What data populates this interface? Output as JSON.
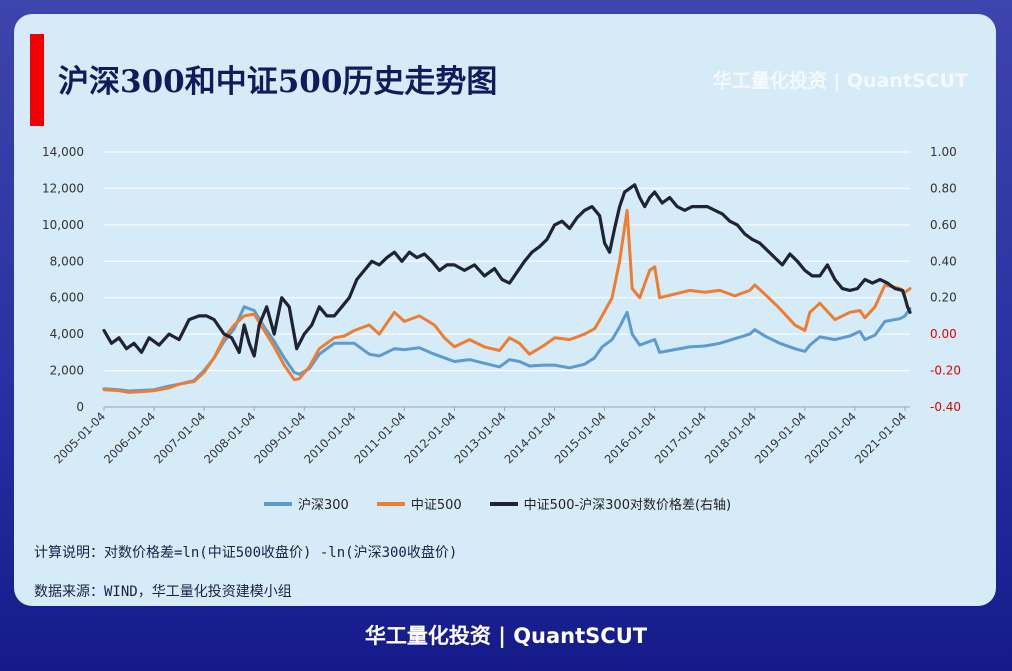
{
  "header": {
    "title": "沪深300和中证500历史走势图",
    "watermark": "华工量化投资 | QuantSCUT"
  },
  "colors": {
    "hs300": "#5b9bd5",
    "zz500": "#ed7d31",
    "spread": "#1f2333",
    "negative_tick": "#e00000",
    "title_bar": "#f00000"
  },
  "chart_data": {
    "type": "line",
    "title": "",
    "xlabel": "",
    "ylabel": "",
    "ylim": [
      0,
      14000
    ],
    "y2lim": [
      -0.4,
      1.0
    ],
    "y_ticks": [
      "0",
      "2,000",
      "4,000",
      "6,000",
      "8,000",
      "10,000",
      "12,000",
      "14,000"
    ],
    "y2_ticks": [
      "-0.40",
      "-0.20",
      "0.00",
      "0.20",
      "0.40",
      "0.60",
      "0.80",
      "1.00"
    ],
    "x_ticks": [
      "2005-01-04",
      "2006-01-04",
      "2007-01-04",
      "2008-01-04",
      "2009-01-04",
      "2010-01-04",
      "2011-01-04",
      "2012-01-04",
      "2013-01-04",
      "2014-01-04",
      "2015-01-04",
      "2016-01-04",
      "2017-01-04",
      "2018-01-04",
      "2019-01-04",
      "2020-01-04",
      "2021-01-04"
    ],
    "x_start_year": 2005,
    "x_end_year": 2021.1,
    "grid": true,
    "legend_position": "bottom",
    "series": [
      {
        "name": "沪深300",
        "axis": "left",
        "x": [
          2005.0,
          2005.3,
          2005.5,
          2005.8,
          2006.0,
          2006.3,
          2006.5,
          2006.8,
          2007.0,
          2007.2,
          2007.4,
          2007.6,
          2007.8,
          2008.0,
          2008.2,
          2008.4,
          2008.6,
          2008.8,
          2008.9,
          2009.1,
          2009.3,
          2009.6,
          2009.8,
          2010.0,
          2010.3,
          2010.5,
          2010.8,
          2011.0,
          2011.3,
          2011.6,
          2011.8,
          2012.0,
          2012.3,
          2012.6,
          2012.9,
          2013.1,
          2013.3,
          2013.5,
          2013.8,
          2014.0,
          2014.3,
          2014.6,
          2014.8,
          2014.95,
          2015.15,
          2015.3,
          2015.45,
          2015.55,
          2015.7,
          2015.9,
          2016.0,
          2016.1,
          2016.4,
          2016.7,
          2017.0,
          2017.3,
          2017.6,
          2017.9,
          2018.0,
          2018.2,
          2018.5,
          2018.8,
          2019.0,
          2019.1,
          2019.3,
          2019.6,
          2019.9,
          2020.1,
          2020.2,
          2020.4,
          2020.6,
          2020.9,
          2021.0,
          2021.1
        ],
        "values": [
          1000,
          950,
          880,
          920,
          950,
          1150,
          1250,
          1450,
          2000,
          2700,
          3600,
          4300,
          5500,
          5300,
          4400,
          3600,
          2700,
          1900,
          1800,
          2100,
          2900,
          3500,
          3500,
          3500,
          2900,
          2800,
          3200,
          3150,
          3250,
          2900,
          2700,
          2500,
          2600,
          2400,
          2200,
          2600,
          2500,
          2250,
          2300,
          2300,
          2150,
          2350,
          2700,
          3300,
          3700,
          4400,
          5200,
          4000,
          3400,
          3600,
          3700,
          3000,
          3150,
          3300,
          3350,
          3500,
          3750,
          4000,
          4250,
          3900,
          3500,
          3200,
          3050,
          3400,
          3850,
          3700,
          3900,
          4150,
          3700,
          3950,
          4700,
          4850,
          5000,
          5400
        ]
      },
      {
        "name": "中证500",
        "axis": "left",
        "x": [
          2005.0,
          2005.3,
          2005.5,
          2005.8,
          2006.0,
          2006.3,
          2006.5,
          2006.8,
          2007.0,
          2007.2,
          2007.4,
          2007.6,
          2007.8,
          2008.0,
          2008.2,
          2008.4,
          2008.6,
          2008.8,
          2008.9,
          2009.1,
          2009.3,
          2009.6,
          2009.8,
          2010.0,
          2010.3,
          2010.5,
          2010.8,
          2011.0,
          2011.3,
          2011.6,
          2011.8,
          2012.0,
          2012.3,
          2012.6,
          2012.9,
          2013.1,
          2013.3,
          2013.5,
          2013.8,
          2014.0,
          2014.3,
          2014.6,
          2014.8,
          2014.95,
          2015.15,
          2015.3,
          2015.45,
          2015.55,
          2015.7,
          2015.9,
          2016.0,
          2016.1,
          2016.4,
          2016.7,
          2017.0,
          2017.3,
          2017.6,
          2017.9,
          2018.0,
          2018.2,
          2018.5,
          2018.8,
          2019.0,
          2019.1,
          2019.3,
          2019.6,
          2019.9,
          2020.1,
          2020.2,
          2020.4,
          2020.6,
          2020.9,
          2021.0,
          2021.1
        ],
        "values": [
          950,
          900,
          800,
          850,
          900,
          1050,
          1250,
          1400,
          1900,
          2700,
          3800,
          4500,
          5000,
          5100,
          4200,
          3300,
          2300,
          1500,
          1550,
          2200,
          3200,
          3800,
          3900,
          4200,
          4500,
          4000,
          5200,
          4700,
          5000,
          4500,
          3800,
          3300,
          3700,
          3300,
          3100,
          3800,
          3500,
          2900,
          3400,
          3800,
          3700,
          4000,
          4300,
          5000,
          6000,
          8000,
          10800,
          6500,
          6000,
          7500,
          7700,
          6000,
          6200,
          6400,
          6300,
          6400,
          6100,
          6400,
          6700,
          6200,
          5400,
          4500,
          4200,
          5200,
          5700,
          4800,
          5200,
          5300,
          4900,
          5500,
          6700,
          6500,
          6300,
          6500
        ]
      },
      {
        "name": "中证500-沪深300对数价格差(右轴)",
        "axis": "right",
        "x": [
          2005.0,
          2005.15,
          2005.3,
          2005.45,
          2005.6,
          2005.75,
          2005.9,
          2006.1,
          2006.3,
          2006.5,
          2006.7,
          2006.9,
          2007.05,
          2007.2,
          2007.4,
          2007.55,
          2007.7,
          2007.8,
          2007.9,
          2008.0,
          2008.1,
          2008.25,
          2008.4,
          2008.55,
          2008.7,
          2008.85,
          2009.0,
          2009.15,
          2009.3,
          2009.45,
          2009.6,
          2009.75,
          2009.9,
          2010.05,
          2010.2,
          2010.35,
          2010.5,
          2010.65,
          2010.8,
          2010.95,
          2011.1,
          2011.25,
          2011.4,
          2011.55,
          2011.7,
          2011.85,
          2012.0,
          2012.2,
          2012.4,
          2012.6,
          2012.8,
          2012.95,
          2013.1,
          2013.25,
          2013.4,
          2013.55,
          2013.7,
          2013.85,
          2014.0,
          2014.15,
          2014.3,
          2014.45,
          2014.6,
          2014.75,
          2014.9,
          2015.0,
          2015.1,
          2015.2,
          2015.3,
          2015.4,
          2015.5,
          2015.6,
          2015.7,
          2015.8,
          2015.9,
          2016.0,
          2016.15,
          2016.3,
          2016.45,
          2016.6,
          2016.75,
          2016.9,
          2017.05,
          2017.2,
          2017.35,
          2017.5,
          2017.65,
          2017.8,
          2017.95,
          2018.1,
          2018.25,
          2018.4,
          2018.55,
          2018.7,
          2018.85,
          2019.0,
          2019.15,
          2019.3,
          2019.45,
          2019.6,
          2019.75,
          2019.9,
          2020.05,
          2020.2,
          2020.35,
          2020.5,
          2020.65,
          2020.8,
          2020.95,
          2021.0,
          2021.05,
          2021.1
        ],
        "values": [
          0.02,
          -0.05,
          -0.02,
          -0.08,
          -0.05,
          -0.1,
          -0.02,
          -0.06,
          0.0,
          -0.03,
          0.08,
          0.1,
          0.1,
          0.08,
          0.0,
          -0.02,
          -0.1,
          0.05,
          -0.05,
          -0.12,
          0.05,
          0.15,
          0.0,
          0.2,
          0.15,
          -0.08,
          0.0,
          0.05,
          0.15,
          0.1,
          0.1,
          0.15,
          0.2,
          0.3,
          0.35,
          0.4,
          0.38,
          0.42,
          0.45,
          0.4,
          0.45,
          0.42,
          0.44,
          0.4,
          0.35,
          0.38,
          0.38,
          0.35,
          0.38,
          0.32,
          0.36,
          0.3,
          0.28,
          0.34,
          0.4,
          0.45,
          0.48,
          0.52,
          0.6,
          0.62,
          0.58,
          0.64,
          0.68,
          0.7,
          0.65,
          0.5,
          0.45,
          0.58,
          0.7,
          0.78,
          0.8,
          0.82,
          0.75,
          0.7,
          0.75,
          0.78,
          0.72,
          0.75,
          0.7,
          0.68,
          0.7,
          0.7,
          0.7,
          0.68,
          0.66,
          0.62,
          0.6,
          0.55,
          0.52,
          0.5,
          0.46,
          0.42,
          0.38,
          0.44,
          0.4,
          0.35,
          0.32,
          0.32,
          0.38,
          0.3,
          0.25,
          0.24,
          0.25,
          0.3,
          0.28,
          0.3,
          0.28,
          0.25,
          0.24,
          0.2,
          0.15,
          0.12
        ]
      }
    ]
  },
  "notes": {
    "formula": "计算说明：对数价格差=ln(中证500收盘价) -ln(沪深300收盘价)",
    "source": "数据来源：WIND，华工量化投资建模小组"
  },
  "footer": {
    "brand": "华工量化投资 | QuantSCUT"
  }
}
